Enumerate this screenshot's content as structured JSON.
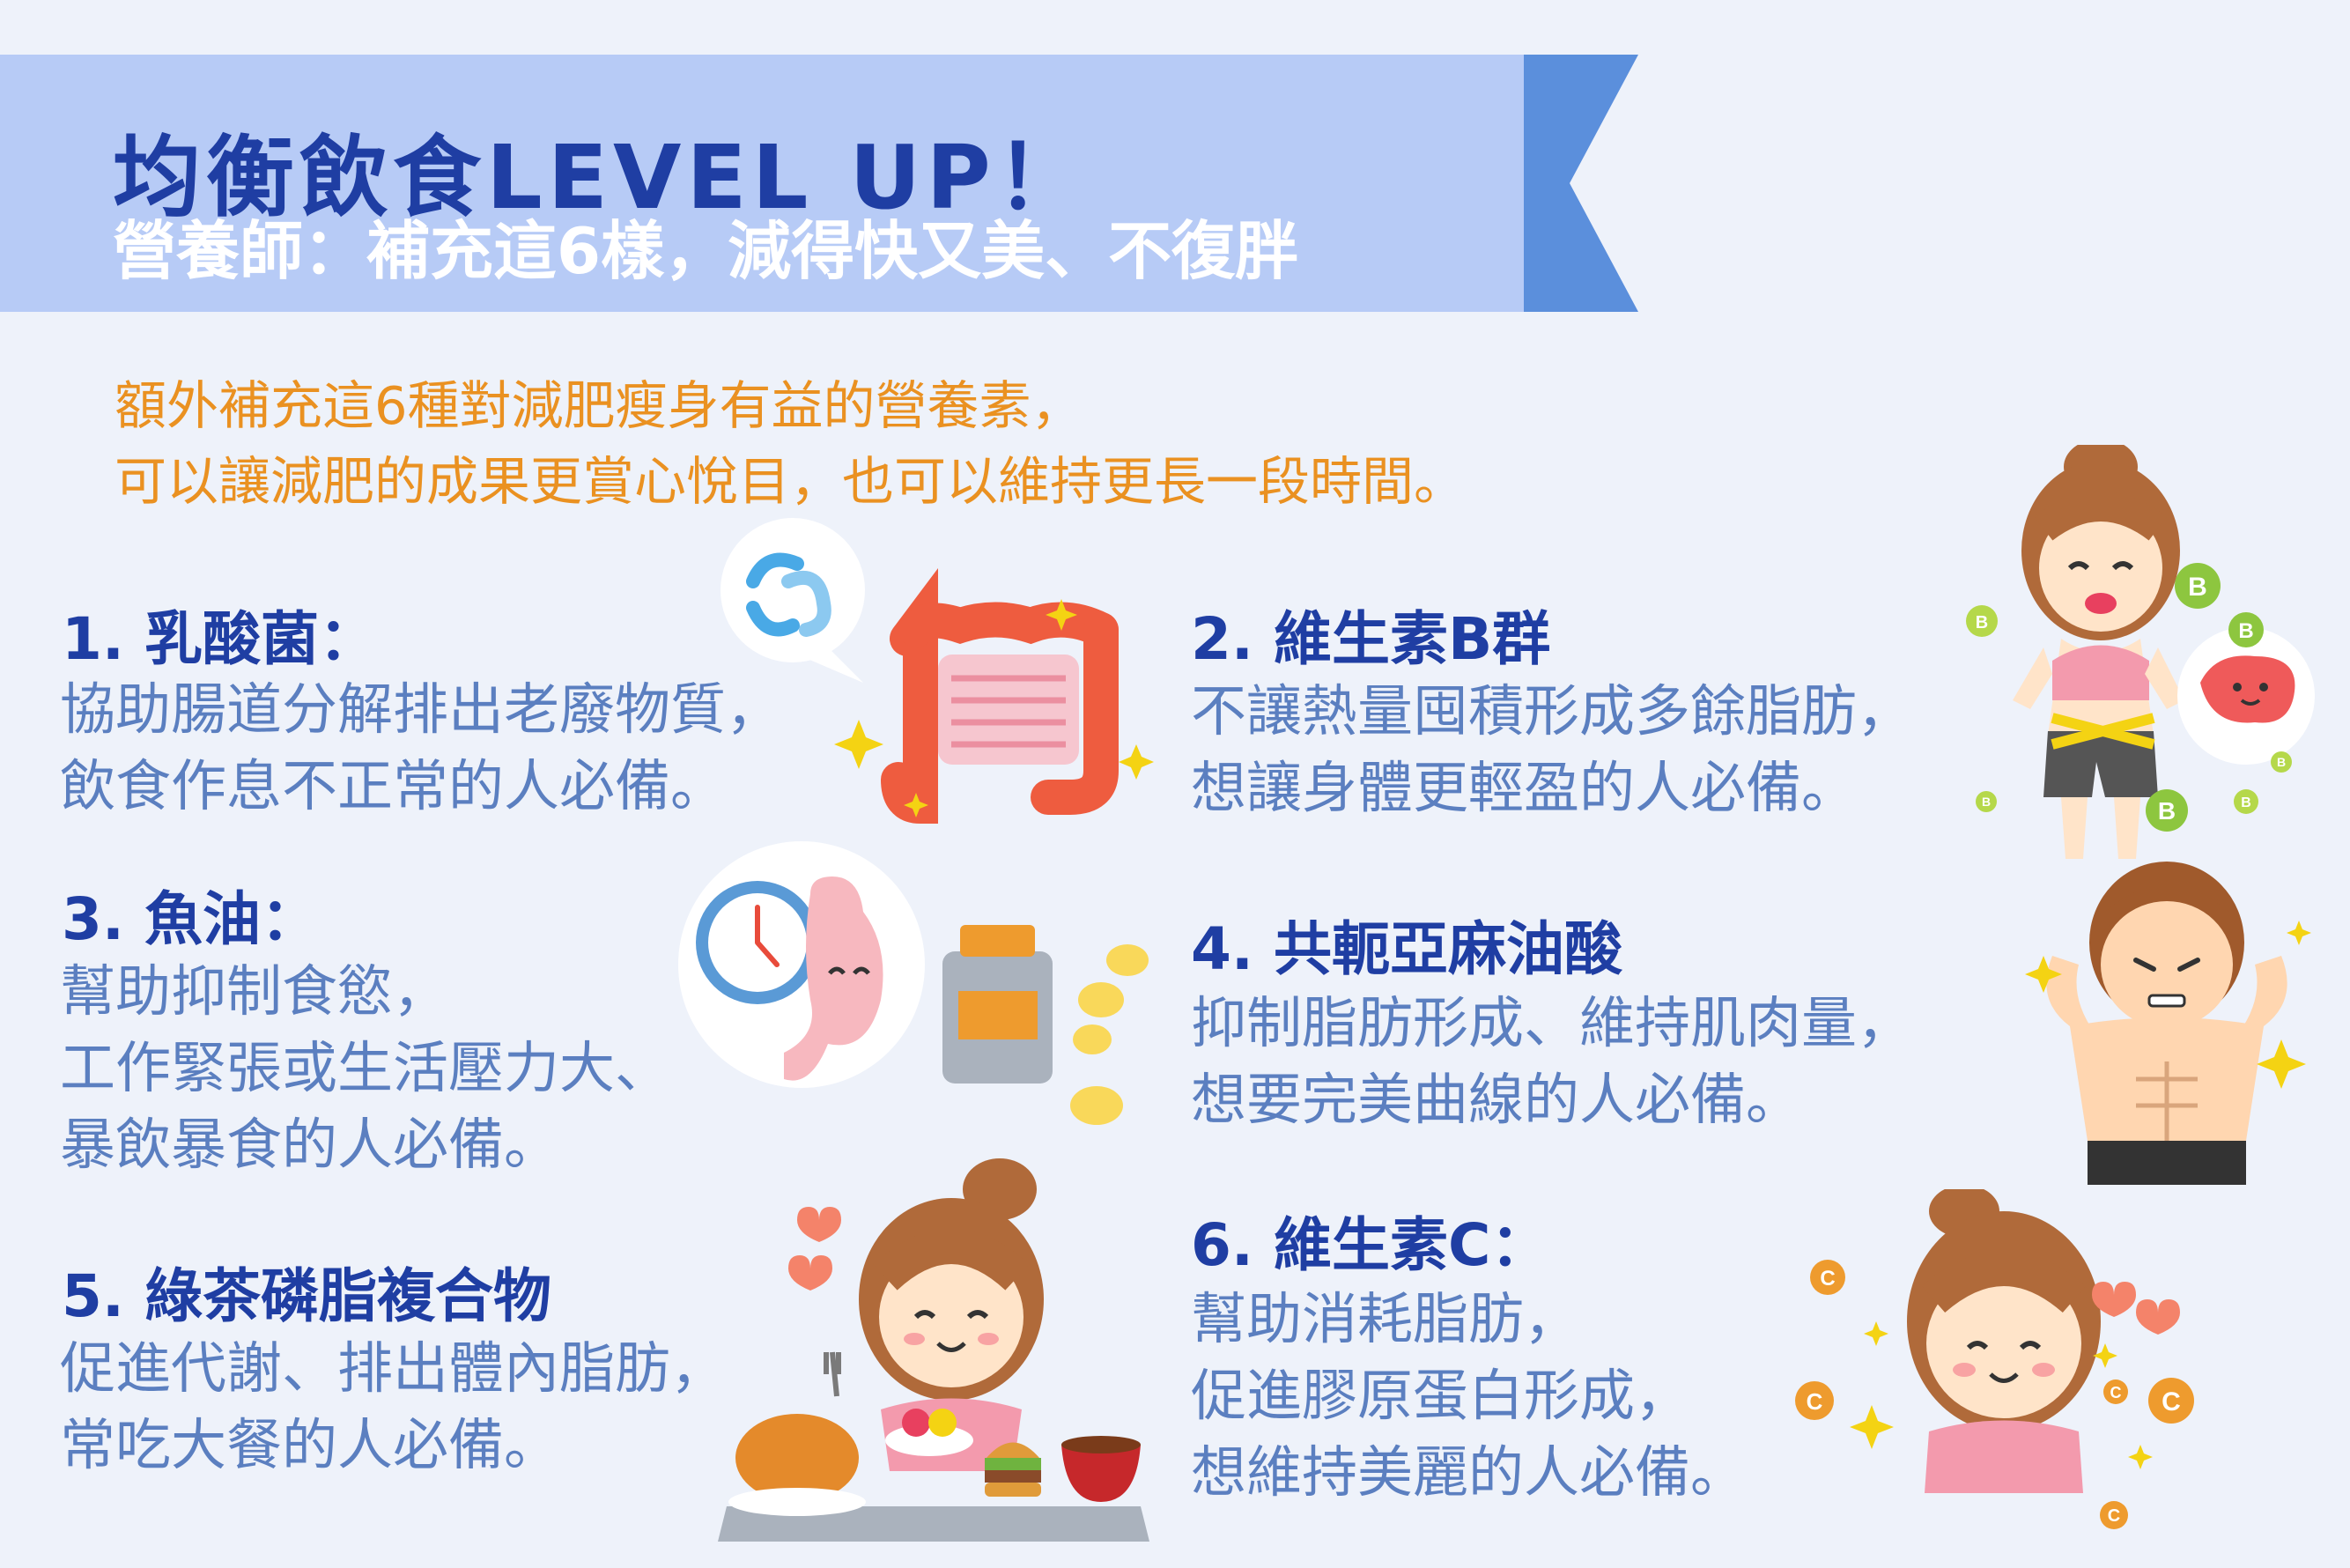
{
  "header": {
    "title": "均衡飲食LEVEL UP！",
    "subtitle": "營養師：補充這6樣，減得快又美、不復胖"
  },
  "intro": {
    "line1": "額外補充這6種對減肥瘦身有益的營養素，",
    "line2": "可以讓減肥的成果更賞心悅目，也可以維持更長一段時間。"
  },
  "items": [
    {
      "heading": "1. 乳酸菌：",
      "lines": [
        "協助腸道分解排出老廢物質，",
        "飲食作息不正常的人必備。"
      ],
      "icon": "intestine-bacteria-icon"
    },
    {
      "heading": "2. 維生素B群",
      "lines": [
        "不讓熱量囤積形成多餘脂肪，",
        "想讓身體更輕盈的人必備。"
      ],
      "icon": "woman-vitamin-b-icon"
    },
    {
      "heading": "3. 魚油：",
      "lines": [
        "幫助抑制食慾，",
        "工作緊張或生活壓力大、",
        "暴飲暴食的人必備。"
      ],
      "icon": "stomach-fish-oil-icon"
    },
    {
      "heading": "4. 共軛亞麻油酸",
      "lines": [
        "抑制脂肪形成、維持肌肉量，",
        "想要完美曲線的人必備。"
      ],
      "icon": "muscle-man-icon"
    },
    {
      "heading": "5. 綠茶磷脂複合物",
      "lines": [
        "促進代謝、排出體內脂肪，",
        "常吃大餐的人必備。"
      ],
      "icon": "woman-eating-feast-icon"
    },
    {
      "heading": "6. 維生素C：",
      "lines": [
        "幫助消耗脂肪，",
        "促進膠原蛋白形成，",
        "想維持美麗的人必備。"
      ],
      "icon": "woman-vitamin-c-icon"
    }
  ],
  "badges": {
    "b": "B",
    "c": "C"
  },
  "colors": {
    "background": "#eef2fa",
    "banner": "#b7cbf6",
    "ribbon": "#5b8fdc",
    "title": "#1f3ea3",
    "intro": "#ea9121",
    "body": "#5b7fc0"
  }
}
